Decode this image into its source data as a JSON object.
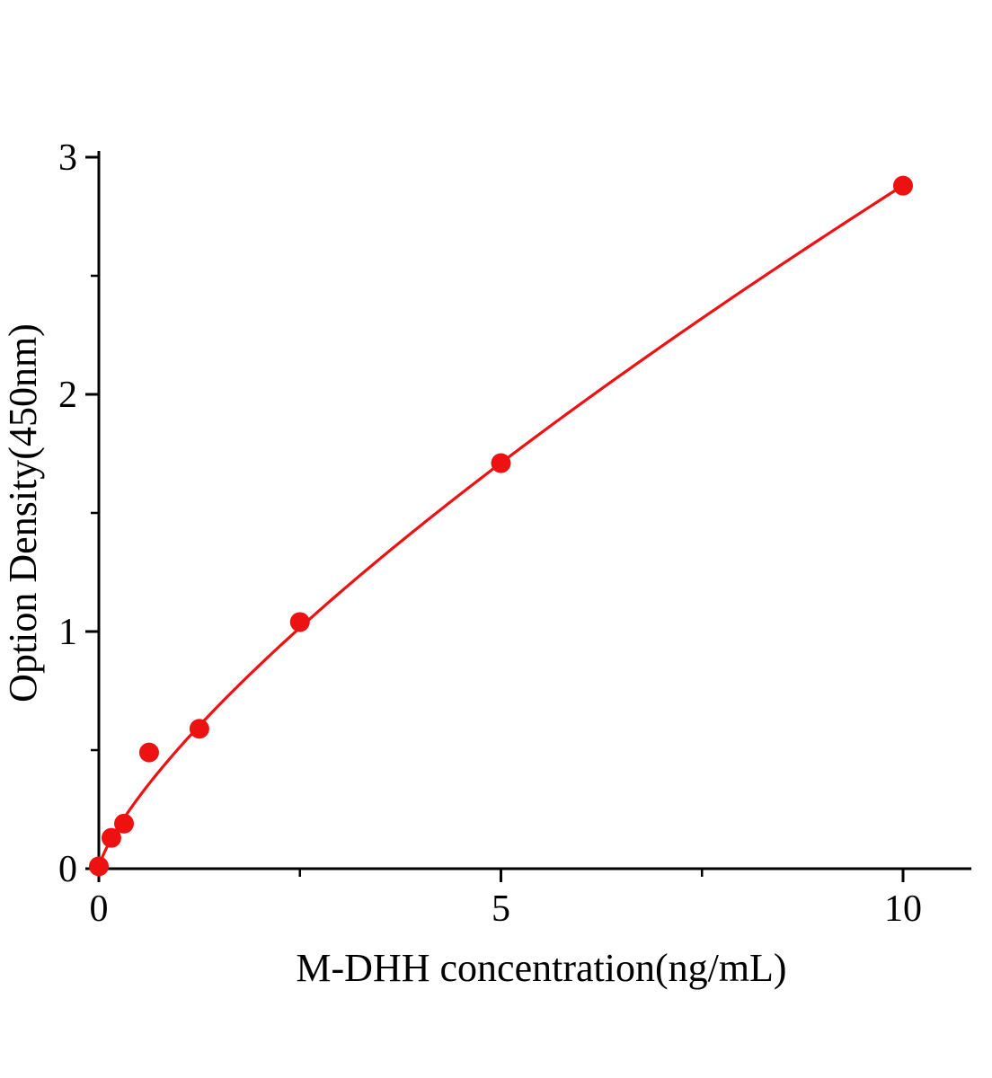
{
  "chart_data": {
    "type": "scatter",
    "title": "",
    "xlabel": "M-DHH concentration(ng/mL)",
    "ylabel": "Option Density(450nm)",
    "x": [
      0,
      0.156,
      0.313,
      0.625,
      1.25,
      2.5,
      5,
      10
    ],
    "y": [
      0.01,
      0.13,
      0.19,
      0.49,
      0.59,
      1.04,
      1.71,
      2.88
    ],
    "xlim": [
      0,
      10.85
    ],
    "ylim": [
      0,
      3
    ],
    "x_major_ticks": [
      0,
      5,
      10
    ],
    "x_minor_ticks": [
      2.5,
      7.5
    ],
    "y_major_ticks": [
      0,
      1,
      2,
      3
    ],
    "y_minor_ticks": [
      0.5,
      1.5,
      2.5
    ],
    "fit": {
      "type": "power",
      "a": 0.51,
      "b": 0.752
    },
    "series_color": "#ee1111",
    "axis_color": "#000000",
    "marker_radius": 11,
    "grid": false,
    "legend": null
  }
}
